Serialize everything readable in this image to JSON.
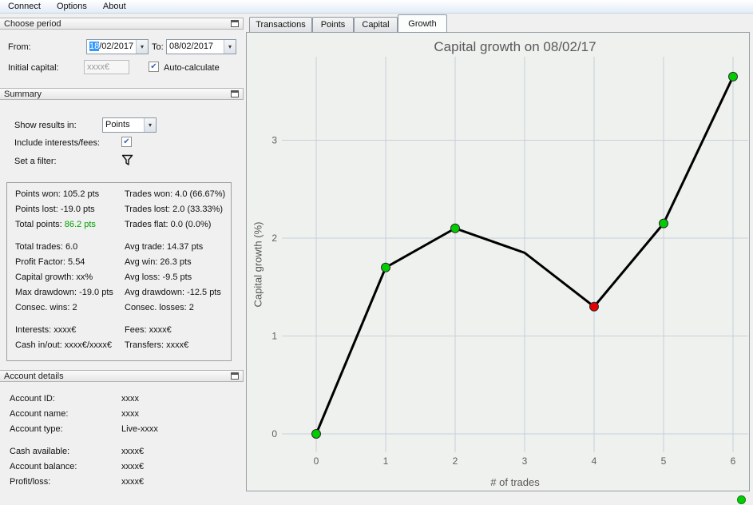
{
  "menu": {
    "items": [
      "Connect",
      "Options",
      "About"
    ]
  },
  "choose_period": {
    "title": "Choose period",
    "from_label": "From:",
    "from_selected_text": "18",
    "from_rest_text": "/02/2017",
    "to_label": "To:",
    "to_value": "08/02/2017",
    "initial_capital_label": "Initial capital:",
    "initial_capital_value": "xxxx€",
    "auto_calculate_label": "Auto-calculate"
  },
  "summary": {
    "title": "Summary",
    "show_results_label": "Show results in:",
    "show_results_value": "Points",
    "include_fees_label": "Include interests/fees:",
    "filter_label": "Set a filter:",
    "stats": {
      "points_won": "Points won: 105.2 pts",
      "trades_won": "Trades won: 4.0 (66.67%)",
      "points_lost": "Points lost: -19.0 pts",
      "trades_lost": "Trades lost: 2.0 (33.33%)",
      "total_points_label": "Total points:",
      "total_points_value": "86.2 pts",
      "trades_flat": "Trades flat: 0.0 (0.0%)",
      "total_trades": "Total trades: 6.0",
      "avg_trade": "Avg trade: 14.37 pts",
      "profit_factor": "Profit Factor: 5.54",
      "avg_win": "Avg win: 26.3 pts",
      "capital_growth": "Capital growth: xx%",
      "avg_loss": "Avg loss: -9.5 pts",
      "max_drawdown": "Max drawdown: -19.0 pts",
      "avg_drawdown": "Avg drawdown: -12.5 pts",
      "consec_wins": "Consec. wins: 2",
      "consec_losses": "Consec. losses: 2",
      "interests": "Interests: xxxx€",
      "fees": "Fees: xxxx€",
      "cash_in_out": "Cash in/out: xxxx€/xxxx€",
      "transfers": "Transfers: xxxx€"
    }
  },
  "account": {
    "title": "Account details",
    "rows": [
      {
        "label": "Account ID:",
        "value": "xxxx"
      },
      {
        "label": "Account name:",
        "value": "xxxx"
      },
      {
        "label": "Account type:",
        "value": "Live-xxxx"
      },
      {
        "label": "Cash available:",
        "value": "xxxx€"
      },
      {
        "label": "Account balance:",
        "value": "xxxx€"
      },
      {
        "label": "Profit/loss:",
        "value": "xxxx€"
      }
    ]
  },
  "tabs": {
    "items": [
      "Transactions",
      "Points",
      "Capital",
      "Growth"
    ],
    "active": "Growth"
  },
  "chart_data": {
    "type": "line",
    "title": "Capital growth on 08/02/17",
    "xlabel": "# of trades",
    "ylabel": "Capital growth (%)",
    "x": [
      0,
      1,
      2,
      3,
      4,
      5,
      6
    ],
    "y": [
      0,
      1.7,
      2.1,
      1.85,
      1.3,
      2.15,
      3.65
    ],
    "marker_colors": [
      "#00cc00",
      "#00cc00",
      "#00cc00",
      null,
      "#e60000",
      "#00cc00",
      "#00cc00"
    ],
    "marker_edge_color": "#2d2d2d",
    "line_color": "#000000",
    "grid": true,
    "grid_color": "#c7d0da",
    "xticks": [
      0,
      1,
      2,
      3,
      4,
      5,
      6
    ],
    "yticks": [
      0,
      1,
      2,
      3
    ],
    "xlim": [
      -0.5,
      6.2
    ],
    "ylim": [
      -0.2,
      3.85
    ],
    "legend": "none"
  },
  "icons": {
    "dropdown_arrow": "▾",
    "check": "✔"
  },
  "colors": {
    "selection": "#3399ff",
    "positive_value": "#00a000",
    "marker_win": "#00cc00",
    "marker_loss": "#e60000",
    "status_connected": "#00d000"
  }
}
